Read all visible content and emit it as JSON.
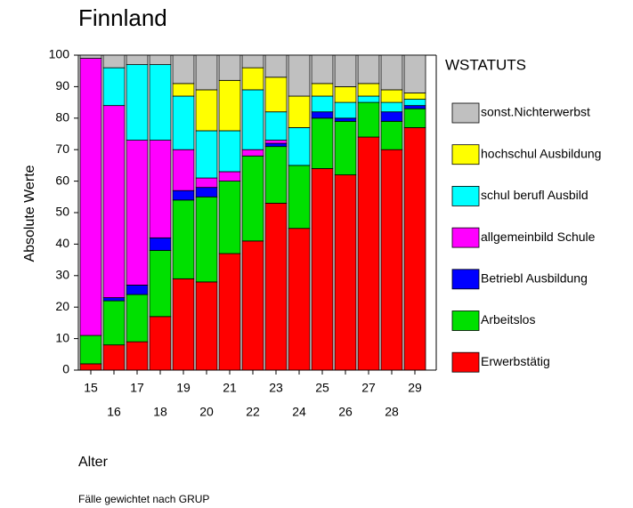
{
  "chart_data": {
    "type": "stacked_bar",
    "title": "Finnland",
    "y_label": "Absolute Werte",
    "x_label": "Alter",
    "footnote": "Fälle gewichtet nach GRUP",
    "legend_title": "WSTATUTS",
    "categories": [
      "15",
      "16",
      "17",
      "18",
      "19",
      "20",
      "21",
      "22",
      "23",
      "24",
      "25",
      "26",
      "27",
      "28",
      "29"
    ],
    "ylim": [
      0,
      100
    ],
    "yticks": [
      0,
      10,
      20,
      30,
      40,
      50,
      60,
      70,
      80,
      90,
      100
    ],
    "series": [
      {
        "name": "Erwerbstätig",
        "color": "#ff0000",
        "values": [
          2,
          8,
          9,
          17,
          29,
          28,
          37,
          41,
          53,
          45,
          64,
          62,
          74,
          70,
          77
        ]
      },
      {
        "name": "Arbeitslos",
        "color": "#00e000",
        "values": [
          9,
          14,
          15,
          21,
          25,
          27,
          23,
          27,
          18,
          20,
          16,
          17,
          11,
          9,
          6
        ]
      },
      {
        "name": "Betriebl Ausbildung",
        "color": "#0000ff",
        "values": [
          0,
          1,
          3,
          4,
          3,
          3,
          0,
          0,
          1,
          0,
          2,
          1,
          0,
          3,
          1
        ]
      },
      {
        "name": "allgemeinbild Schule",
        "color": "#ff00ff",
        "values": [
          88,
          61,
          46,
          31,
          13,
          3,
          3,
          2,
          1,
          0,
          0,
          0,
          0,
          0,
          0
        ]
      },
      {
        "name": "schul berufl Ausbild",
        "color": "#00ffff",
        "values": [
          0,
          12,
          24,
          24,
          17,
          15,
          13,
          19,
          9,
          12,
          5,
          5,
          2,
          3,
          2
        ]
      },
      {
        "name": "hochschul Ausbildung",
        "color": "#ffff00",
        "values": [
          0,
          0,
          0,
          0,
          4,
          13,
          16,
          7,
          11,
          10,
          4,
          5,
          4,
          4,
          2
        ]
      },
      {
        "name": "sonst.Nichterwerbst",
        "color": "#c0c0c0",
        "values": [
          1,
          4,
          3,
          3,
          9,
          11,
          8,
          4,
          7,
          13,
          9,
          10,
          9,
          11,
          12
        ]
      }
    ]
  }
}
